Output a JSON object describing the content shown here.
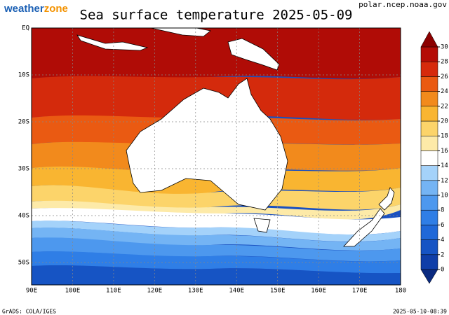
{
  "header": {
    "logo_weather": "weather",
    "logo_zone": "zone",
    "title": "Sea surface temperature 2025-05-09",
    "source": "polar.ncep.noaa.gov"
  },
  "map": {
    "lat_labels": [
      "EQ",
      "10S",
      "20S",
      "30S",
      "40S",
      "50S"
    ],
    "lon_labels": [
      "90E",
      "100E",
      "110E",
      "120E",
      "130E",
      "140E",
      "150E",
      "160E",
      "170E",
      "180"
    ]
  },
  "colorbar": {
    "ticks": [
      0,
      2,
      4,
      6,
      8,
      10,
      12,
      14,
      16,
      18,
      20,
      22,
      24,
      26,
      28,
      30
    ],
    "colors": [
      "#0a2a80",
      "#0f3ea8",
      "#1654c4",
      "#1f68d8",
      "#2f7ee6",
      "#4d98ee",
      "#74b4f4",
      "#a4d2fa",
      "#ffffff",
      "#fdeaa8",
      "#fcd46a",
      "#f9b531",
      "#f28a1c",
      "#ea5a12",
      "#d62a0c",
      "#b40c06",
      "#8c0000"
    ]
  },
  "footer": {
    "left": "GrADS: COLA/IGES",
    "right": "2025-05-10-08:39"
  }
}
